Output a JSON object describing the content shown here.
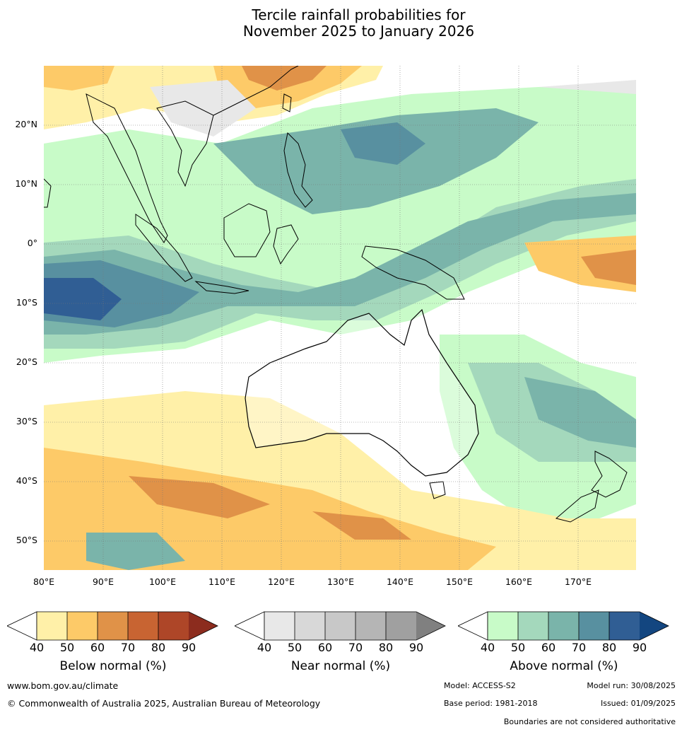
{
  "title_line1": "Tercile rainfall probabilities for",
  "title_line2": "November 2025 to January 2026",
  "lat_labels": [
    "20°N",
    "10°N",
    "0°",
    "10°S",
    "20°S",
    "30°S",
    "40°S",
    "50°S"
  ],
  "lon_labels": [
    "80°E",
    "90°E",
    "100°E",
    "110°E",
    "120°E",
    "130°E",
    "140°E",
    "150°E",
    "160°E",
    "170°E"
  ],
  "colorbars": [
    {
      "title": "Below normal (%)",
      "ticks": [
        "40",
        "50",
        "60",
        "70",
        "80",
        "90"
      ],
      "colors": [
        "#fff0a8",
        "#fdca68",
        "#e09248",
        "#c86432",
        "#ae4628",
        "#8c2c1e"
      ]
    },
    {
      "title": "Near normal (%)",
      "ticks": [
        "40",
        "50",
        "60",
        "70",
        "80",
        "90"
      ],
      "colors": [
        "#e8e8e8",
        "#d8d8d8",
        "#c8c8c8",
        "#b5b5b5",
        "#a0a0a0",
        "#808080"
      ]
    },
    {
      "title": "Above normal (%)",
      "ticks": [
        "40",
        "50",
        "60",
        "70",
        "80",
        "90"
      ],
      "colors": [
        "#c8fbc8",
        "#a4d8bc",
        "#7ab4aa",
        "#5890a0",
        "#305e94",
        "#134680"
      ]
    }
  ],
  "footer": {
    "url": "www.bom.gov.au/climate",
    "copyright": "© Commonwealth of Australia 2025, Australian Bureau of Meteorology",
    "model": "Model: ACCESS-S2",
    "model_run": "Model run: 30/08/2025",
    "base_period": "Base period: 1981-2018",
    "issued": "Issued: 01/09/2025",
    "disclaimer": "Boundaries are not considered authoritative"
  }
}
